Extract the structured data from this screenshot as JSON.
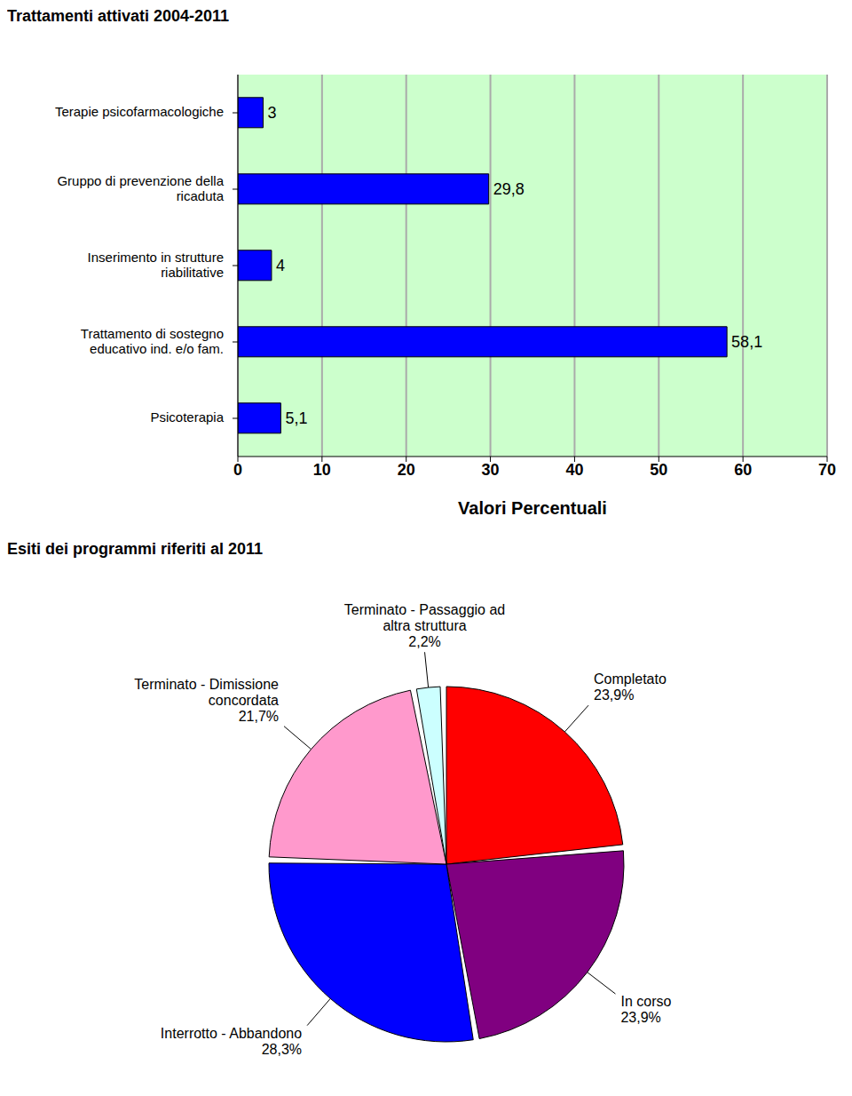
{
  "chart_data": [
    {
      "type": "bar",
      "title": "Trattamenti attivati 2004-2011",
      "orientation": "horizontal",
      "categories": [
        "Terapie psicofarmacologiche",
        "Gruppo di prevenzione della ricaduta",
        "Inserimento in strutture riabilitative",
        "Trattamento di sostegno educativo ind. e/o fam.",
        "Psicoterapia"
      ],
      "values": [
        3,
        29.8,
        4,
        58.1,
        5.1
      ],
      "value_labels": [
        "3",
        "29,8",
        "4",
        "58,1",
        "5,1"
      ],
      "data_labels": true,
      "color": "#0000ff",
      "x_label": "Valori Percentuali",
      "xlim": [
        0,
        70
      ],
      "xticks": [
        0,
        10,
        20,
        30,
        40,
        50,
        60,
        70
      ],
      "grid": true
    },
    {
      "type": "pie",
      "title": "Esiti dei programmi riferiti al 2011",
      "categories": [
        "Completato",
        "In corso",
        "Interrotto - Abbandono",
        "Terminato - Dimissione concordata",
        "Terminato - Passaggio ad altra struttura"
      ],
      "values": [
        23.9,
        23.9,
        28.3,
        21.7,
        2.2
      ],
      "value_labels": [
        "23,9%",
        "23,9%",
        "28,3%",
        "21,7%",
        "2,2%"
      ],
      "data_labels": true,
      "colors": [
        "#ff0000",
        "#800080",
        "#0000ff",
        "#ff99cc",
        "#ccffff"
      ]
    }
  ]
}
